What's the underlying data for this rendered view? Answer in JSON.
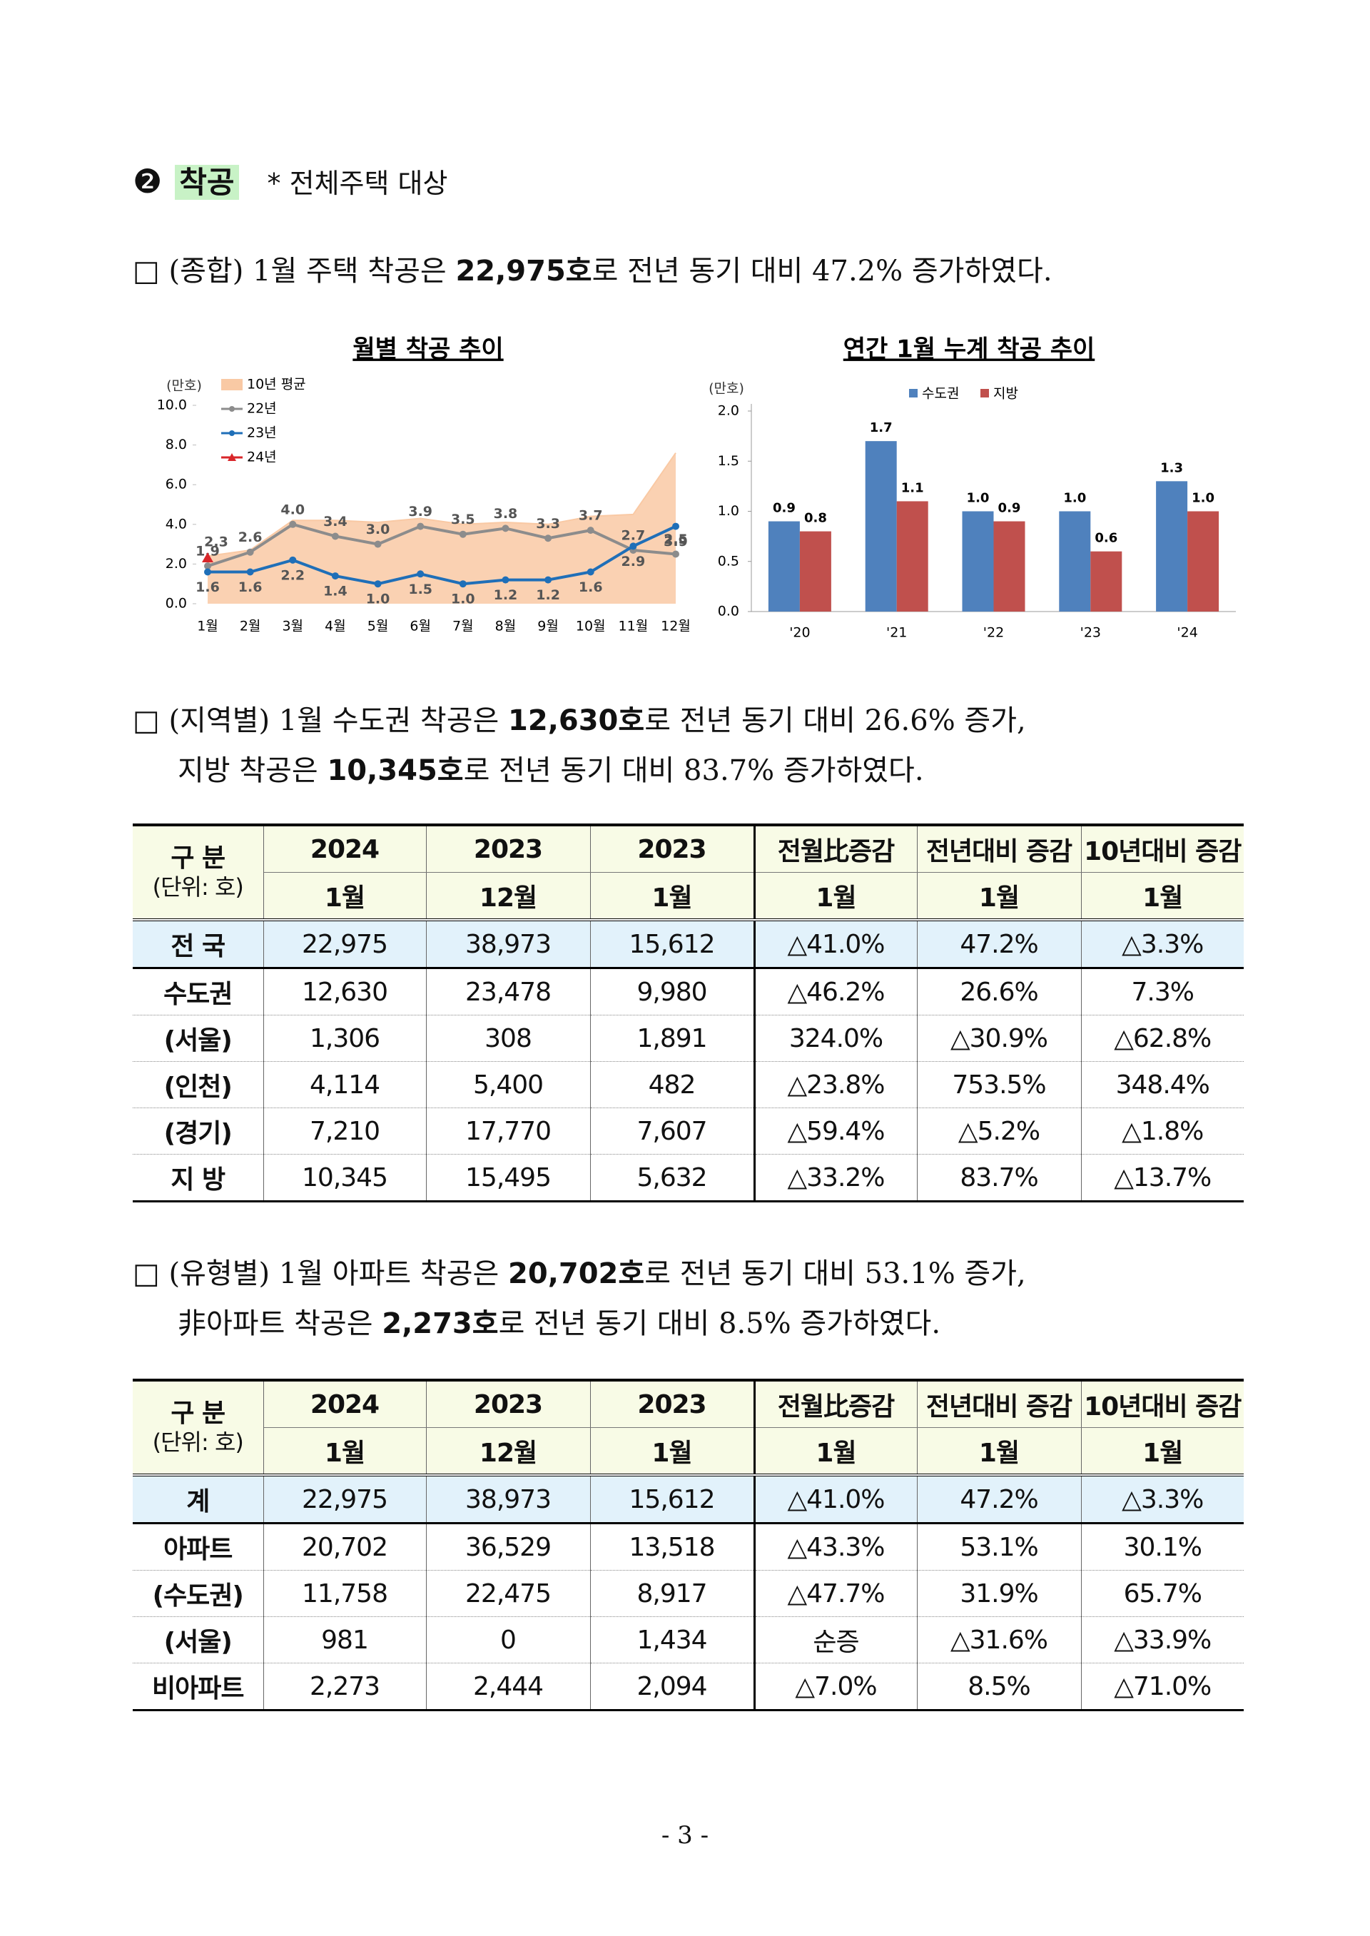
{
  "heading": {
    "number": "❷",
    "title": "착공",
    "note": "* 전체주택 대상"
  },
  "paragraphs": [
    {
      "lines": [
        [
          {
            "text": "□ (종합) 1월 주택 착공은 "
          },
          {
            "text": "22,975호",
            "bold": true
          },
          {
            "text": "로 전년 동기 대비 47.2% 증가하였다."
          }
        ]
      ]
    },
    {
      "lines": [
        [
          {
            "text": "□ (지역별) 1월 수도권 착공은 "
          },
          {
            "text": "12,630호",
            "bold": true
          },
          {
            "text": "로 전년 동기 대비 26.6% 증가,"
          }
        ],
        [
          {
            "text": "지방 착공은 "
          },
          {
            "text": "10,345호",
            "bold": true
          },
          {
            "text": "로 전년 동기 대비 83.7% 증가하였다."
          }
        ]
      ]
    },
    {
      "lines": [
        [
          {
            "text": "□ (유형별) 1월 아파트 착공은 "
          },
          {
            "text": "20,702호",
            "bold": true
          },
          {
            "text": "로 전년 동기 대비 53.1% 증가,"
          }
        ],
        [
          {
            "text": "非아파트 착공은 "
          },
          {
            "text": "2,273호",
            "bold": true
          },
          {
            "text": "로 전년 동기 대비 8.5% 증가하였다."
          }
        ]
      ]
    }
  ],
  "chart_data": [
    {
      "type": "line",
      "title": "월별 착공 추이",
      "y_unit": "(만호)",
      "categories": [
        "1월",
        "2월",
        "3월",
        "4월",
        "5월",
        "6월",
        "7월",
        "8월",
        "9월",
        "10월",
        "11월",
        "12월"
      ],
      "ylim": [
        0,
        10
      ],
      "yticks": [
        {
          "value": 0,
          "label": "0.0"
        },
        {
          "value": 2,
          "label": "2.0"
        },
        {
          "value": 4,
          "label": "4.0"
        },
        {
          "value": 6,
          "label": "6.0"
        },
        {
          "value": 8,
          "label": "8.0"
        },
        {
          "value": 10,
          "label": "10.0"
        }
      ],
      "series": [
        {
          "name": "10년 평균",
          "style": "area",
          "color": "#f9c9a4",
          "values": [
            2.4,
            2.7,
            4.2,
            4.2,
            4.1,
            4.3,
            4.0,
            4.1,
            4.0,
            4.4,
            4.5,
            7.6
          ]
        },
        {
          "name": "22년",
          "style": "line",
          "marker": "circle",
          "color": "#8c8c8c",
          "values": [
            1.9,
            2.6,
            4.0,
            3.4,
            3.0,
            3.9,
            3.5,
            3.8,
            3.3,
            3.7,
            2.7,
            2.5
          ],
          "value_labels": [
            "1.9",
            "2.6",
            "4.0",
            "3.4",
            "3.0",
            "3.9",
            "3.5",
            "3.8",
            "3.3",
            "3.7",
            "2.7",
            "2.5"
          ]
        },
        {
          "name": "23년",
          "style": "line",
          "marker": "circle",
          "color": "#1f6fb8",
          "values": [
            1.6,
            1.6,
            2.2,
            1.4,
            1.0,
            1.5,
            1.0,
            1.2,
            1.2,
            1.6,
            2.9,
            3.9
          ],
          "value_labels": [
            "1.6",
            "1.6",
            "2.2",
            "1.4",
            "1.0",
            "1.5",
            "1.0",
            "1.2",
            "1.2",
            "1.6",
            "2.9",
            "3.9"
          ]
        },
        {
          "name": "24년",
          "style": "line",
          "marker": "triangle",
          "color": "#d9262a",
          "values": [
            2.3,
            null,
            null,
            null,
            null,
            null,
            null,
            null,
            null,
            null,
            null,
            null
          ],
          "value_labels": [
            "2.3",
            null,
            null,
            null,
            null,
            null,
            null,
            null,
            null,
            null,
            null,
            null
          ]
        }
      ]
    },
    {
      "type": "bar",
      "title": "연간 1월 누계 착공 추이",
      "y_unit": "(만호)",
      "categories": [
        "'20",
        "'21",
        "'22",
        "'23",
        "'24"
      ],
      "ylim": [
        0,
        2
      ],
      "yticks": [
        {
          "value": 0,
          "label": "0.0"
        },
        {
          "value": 0.5,
          "label": "0.5"
        },
        {
          "value": 1,
          "label": "1.0"
        },
        {
          "value": 1.5,
          "label": "1.5"
        },
        {
          "value": 2,
          "label": "2.0"
        }
      ],
      "series": [
        {
          "name": "수도권",
          "color": "#4f81bd",
          "values": [
            0.9,
            1.7,
            1.0,
            1.0,
            1.3
          ],
          "value_labels": [
            "0.9",
            "1.7",
            "1.0",
            "1.0",
            "1.3"
          ]
        },
        {
          "name": "지방",
          "color": "#c0504d",
          "values": [
            0.8,
            1.1,
            0.9,
            0.6,
            1.0
          ],
          "value_labels": [
            "0.8",
            "1.1",
            "0.9",
            "0.6",
            "1.0"
          ]
        }
      ]
    }
  ],
  "tables": [
    {
      "corner": [
        "구 분",
        "(단위: 호)"
      ],
      "header": [
        [
          "2024",
          "2023",
          "2023",
          "전월比증감",
          "전년대비 증감",
          "10년대비 증감"
        ],
        [
          "1월",
          "12월",
          "1월",
          "1월",
          "1월",
          "1월"
        ]
      ],
      "rows": [
        [
          "전 국",
          "22,975",
          "38,973",
          "15,612",
          "△41.0%",
          "47.2%",
          "△3.3%"
        ],
        [
          "수도권",
          "12,630",
          "23,478",
          "9,980",
          "△46.2%",
          "26.6%",
          "7.3%"
        ],
        [
          "(서울)",
          "1,306",
          "308",
          "1,891",
          "324.0%",
          "△30.9%",
          "△62.8%"
        ],
        [
          "(인천)",
          "4,114",
          "5,400",
          "482",
          "△23.8%",
          "753.5%",
          "348.4%"
        ],
        [
          "(경기)",
          "7,210",
          "17,770",
          "7,607",
          "△59.4%",
          "△5.2%",
          "△1.8%"
        ],
        [
          "지 방",
          "10,345",
          "15,495",
          "5,632",
          "△33.2%",
          "83.7%",
          "△13.7%"
        ]
      ]
    },
    {
      "corner": [
        "구 분",
        "(단위: 호)"
      ],
      "header": [
        [
          "2024",
          "2023",
          "2023",
          "전월比증감",
          "전년대비 증감",
          "10년대비 증감"
        ],
        [
          "1월",
          "12월",
          "1월",
          "1월",
          "1월",
          "1월"
        ]
      ],
      "rows": [
        [
          "계",
          "22,975",
          "38,973",
          "15,612",
          "△41.0%",
          "47.2%",
          "△3.3%"
        ],
        [
          "아파트",
          "20,702",
          "36,529",
          "13,518",
          "△43.3%",
          "53.1%",
          "30.1%"
        ],
        [
          "(수도권)",
          "11,758",
          "22,475",
          "8,917",
          "△47.7%",
          "31.9%",
          "65.7%"
        ],
        [
          "(서울)",
          "981",
          "0",
          "1,434",
          "순증",
          "△31.6%",
          "△33.9%"
        ],
        [
          "비아파트",
          "2,273",
          "2,444",
          "2,094",
          "△7.0%",
          "8.5%",
          "△71.0%"
        ]
      ]
    }
  ],
  "footer": {
    "page": "- 3 -"
  }
}
